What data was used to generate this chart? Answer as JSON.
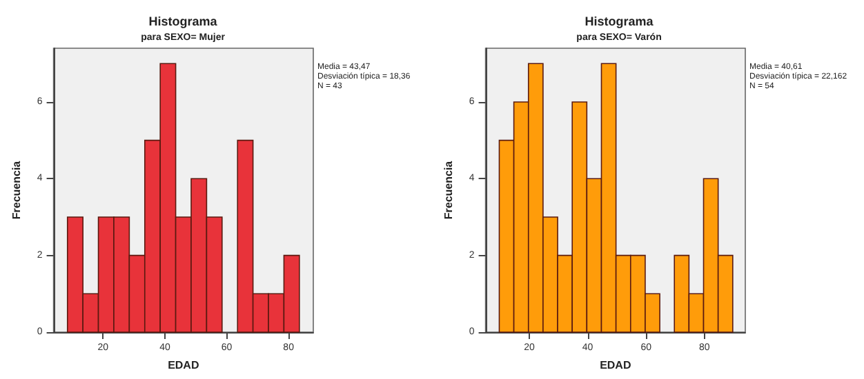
{
  "chart_data": [
    {
      "type": "histogram",
      "title": "Histograma",
      "subtitle": "para SEXO= Mujer",
      "xlabel": "EDAD",
      "ylabel": "Frecuencia",
      "annotations": [
        "Media = 43,47",
        "Desviación típica = 18,36",
        "N = 43"
      ],
      "bins": [
        8.5,
        13.5,
        18.5,
        23.5,
        28.5,
        33.5,
        38.5,
        43.5,
        48.5,
        53.5,
        58.5,
        63.5,
        68.5,
        73.5,
        78.5,
        83.5
      ],
      "values": [
        3,
        1,
        3,
        3,
        2,
        5,
        7,
        3,
        4,
        3,
        0,
        5,
        1,
        1,
        2
      ],
      "color": "#e8333a",
      "xlim": [
        4,
        88
      ],
      "xticks": [
        20,
        40,
        60,
        80
      ],
      "ylim": [
        0,
        7.4
      ],
      "yticks": [
        0,
        2,
        4,
        6
      ],
      "grid": false
    },
    {
      "type": "histogram",
      "title": "Histograma",
      "subtitle": "para SEXO= Varón",
      "xlabel": "EDAD",
      "ylabel": "Frecuencia",
      "annotations": [
        "Media = 40,61",
        "Desviación típica = 22,162",
        "N = 54"
      ],
      "bins": [
        9.7,
        14.7,
        19.7,
        24.7,
        29.7,
        34.7,
        39.7,
        44.7,
        49.7,
        54.7,
        59.7,
        64.7,
        69.7,
        74.7,
        79.7,
        84.7,
        89.7
      ],
      "values": [
        5,
        6,
        7,
        3,
        2,
        6,
        4,
        7,
        2,
        2,
        1,
        0,
        2,
        1,
        4,
        2
      ],
      "color": "#ff9c0a",
      "xlim": [
        5,
        94
      ],
      "xticks": [
        20,
        40,
        60,
        80
      ],
      "ylim": [
        0,
        7.4
      ],
      "yticks": [
        0,
        2,
        4,
        6
      ],
      "grid": false
    }
  ]
}
